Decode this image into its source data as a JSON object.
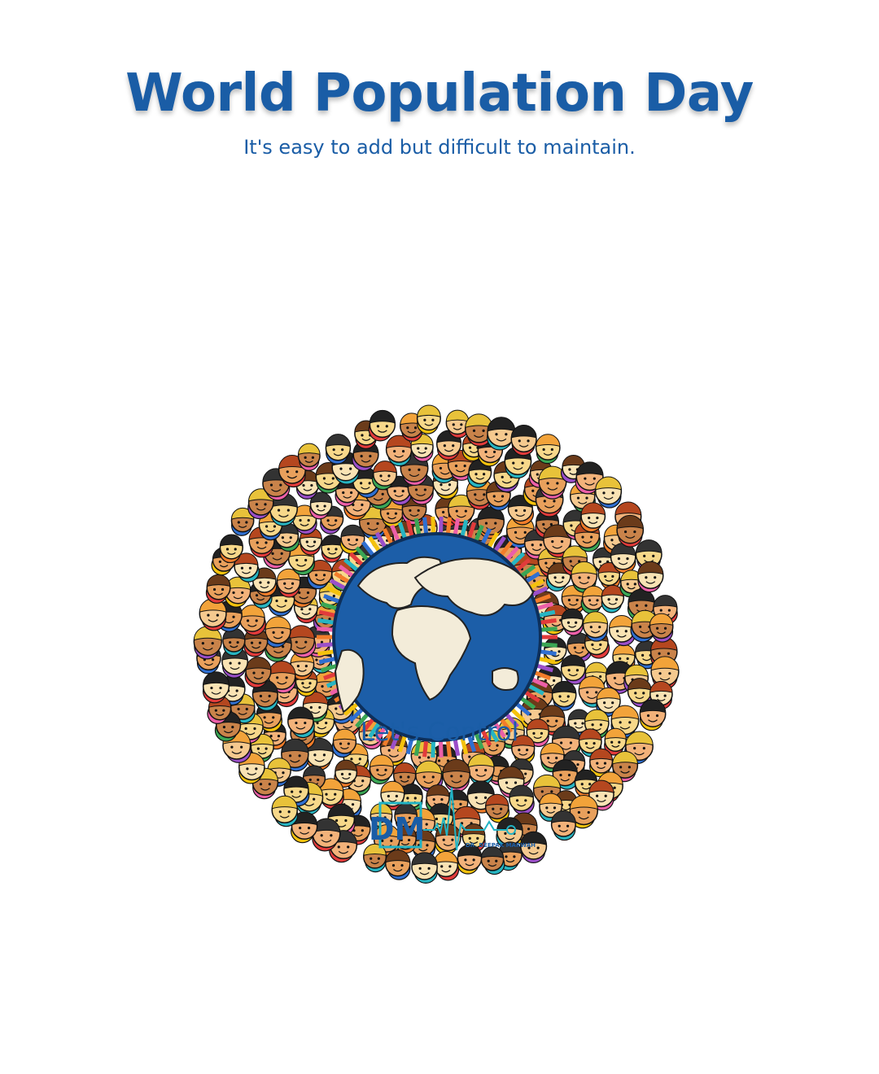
{
  "header": {
    "title": "World Population Day",
    "subtitle": "It's easy to add but difficult to maintain."
  },
  "tagline": "Let's Control",
  "logo": {
    "monogram": "DM",
    "name": "DR. DEEPAK MARWAH"
  }
}
